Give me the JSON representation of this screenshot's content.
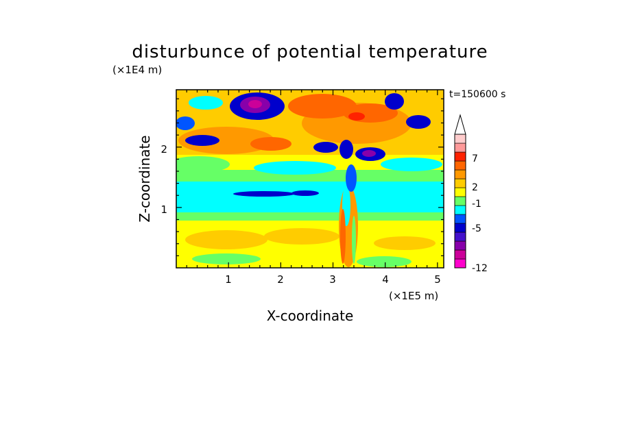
{
  "chart_data": {
    "type": "heatmap",
    "title": "disturbunce of potential temperature",
    "xlabel": "X-coordinate",
    "ylabel": "Z-coordinate",
    "x_unit": "(×1E5 m)",
    "y_unit": "(×1E4 m)",
    "time_label": "t=150600 s",
    "xlim": [
      0,
      5.12
    ],
    "ylim": [
      0,
      2.95
    ],
    "x_ticks": [
      "1",
      "2",
      "3",
      "4",
      "5"
    ],
    "y_ticks": [
      "1",
      "2"
    ],
    "colorbar": {
      "levels": [
        "-12",
        "-5",
        "-1",
        "2",
        "7"
      ],
      "colors": [
        "#ff00cc",
        "#cc0099",
        "#8800aa",
        "#4411cc",
        "#0000cc",
        "#0055ff",
        "#00ffff",
        "#66ff66",
        "#ffff00",
        "#ffcc00",
        "#ff9900",
        "#ff6600",
        "#ff2200",
        "#ff9999",
        "#ffcccc"
      ],
      "extend": "max"
    }
  }
}
